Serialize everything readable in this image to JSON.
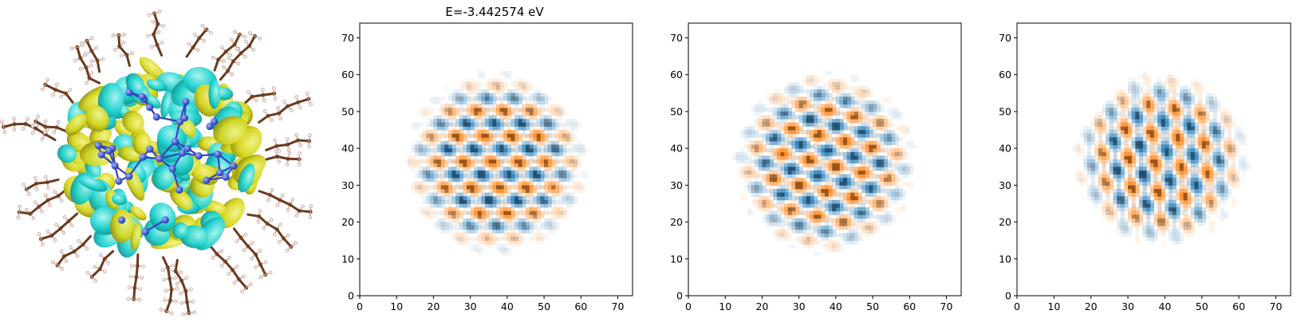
{
  "figure": {
    "title": "E=-3.442574 eV"
  },
  "molecule_panel": {
    "description_icon": "molecule-isosurface-render",
    "colors": {
      "lobe_positive": "#d6d61e",
      "lobe_negative": "#20d2cf",
      "atom_core": "#2f4fd0",
      "ligand_bond": "#6b3a1f",
      "hydrogen": "#e9dede"
    }
  },
  "chart_data": [
    {
      "type": "heatmap",
      "title": "E=-3.442574 eV",
      "xlabel": "",
      "ylabel": "",
      "xlim": [
        0,
        74
      ],
      "ylim": [
        0,
        74
      ],
      "xticks": [
        0,
        10,
        20,
        30,
        40,
        50,
        60,
        70
      ],
      "yticks": [
        0,
        10,
        20,
        30,
        40,
        50,
        60,
        70
      ],
      "grid": false,
      "colormap": "diverging blue-white-orange",
      "colors": {
        "positive": "#ff7f0e",
        "negative": "#1f77b4"
      },
      "blob_center": [
        37,
        36
      ],
      "blob_radius": 21,
      "pattern": {
        "kx": 0.0,
        "ky": 0.9,
        "k2x": 0.85,
        "k2y": 0.25,
        "phase": 0.3
      }
    },
    {
      "type": "heatmap",
      "title": "",
      "xlabel": "",
      "ylabel": "",
      "xlim": [
        0,
        74
      ],
      "ylim": [
        0,
        74
      ],
      "xticks": [
        0,
        10,
        20,
        30,
        40,
        50,
        60,
        70
      ],
      "yticks": [
        0,
        10,
        20,
        30,
        40,
        50,
        60,
        70
      ],
      "grid": false,
      "colormap": "diverging blue-white-orange",
      "colors": {
        "positive": "#ff7f0e",
        "negative": "#1f77b4"
      },
      "blob_center": [
        37,
        36
      ],
      "blob_radius": 21,
      "pattern": {
        "kx": 0.2,
        "ky": 0.85,
        "k2x": 0.8,
        "k2y": -0.3,
        "phase": 1.4
      }
    },
    {
      "type": "heatmap",
      "title": "",
      "xlabel": "",
      "ylabel": "",
      "xlim": [
        0,
        74
      ],
      "ylim": [
        0,
        74
      ],
      "xticks": [
        0,
        10,
        20,
        30,
        40,
        50,
        60,
        70
      ],
      "yticks": [
        0,
        10,
        20,
        30,
        40,
        50,
        60,
        70
      ],
      "grid": false,
      "colormap": "diverging blue-white-orange",
      "colors": {
        "positive": "#ff7f0e",
        "negative": "#1f77b4"
      },
      "blob_center": [
        39,
        37
      ],
      "blob_radius": 20,
      "pattern": {
        "kx": 0.9,
        "ky": 0.1,
        "k2x": 0.15,
        "k2y": 0.8,
        "phase": 2.1
      }
    }
  ]
}
